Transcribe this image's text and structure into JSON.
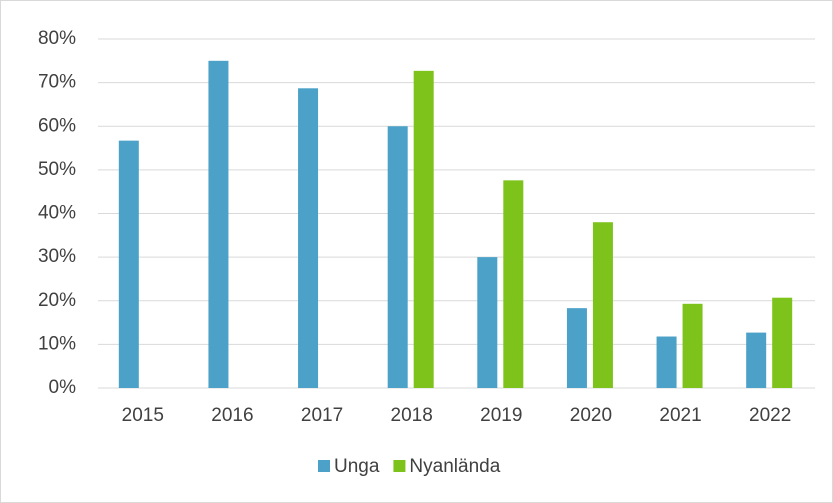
{
  "chart_data": {
    "type": "bar",
    "categories": [
      "2015",
      "2016",
      "2017",
      "2018",
      "2019",
      "2020",
      "2021",
      "2022"
    ],
    "series": [
      {
        "name": "Unga",
        "color": "#4ba1c8",
        "values": [
          56.7,
          75,
          68.7,
          60,
          30,
          18.3,
          11.8,
          12.7
        ]
      },
      {
        "name": "Nyanlända",
        "color": "#7ec21c",
        "values": [
          null,
          null,
          null,
          72.7,
          47.6,
          38,
          19.3,
          20.7
        ]
      }
    ],
    "ylim": [
      0,
      80
    ],
    "yticks": [
      {
        "value": 0,
        "label": "0%"
      },
      {
        "value": 10,
        "label": "10%"
      },
      {
        "value": 20,
        "label": "20%"
      },
      {
        "value": 30,
        "label": "30%"
      },
      {
        "value": 40,
        "label": "40%"
      },
      {
        "value": 50,
        "label": "50%"
      },
      {
        "value": 60,
        "label": "60%"
      },
      {
        "value": 70,
        "label": "70%"
      },
      {
        "value": 80,
        "label": "80%"
      }
    ],
    "grid": true,
    "legend": "bottom"
  }
}
